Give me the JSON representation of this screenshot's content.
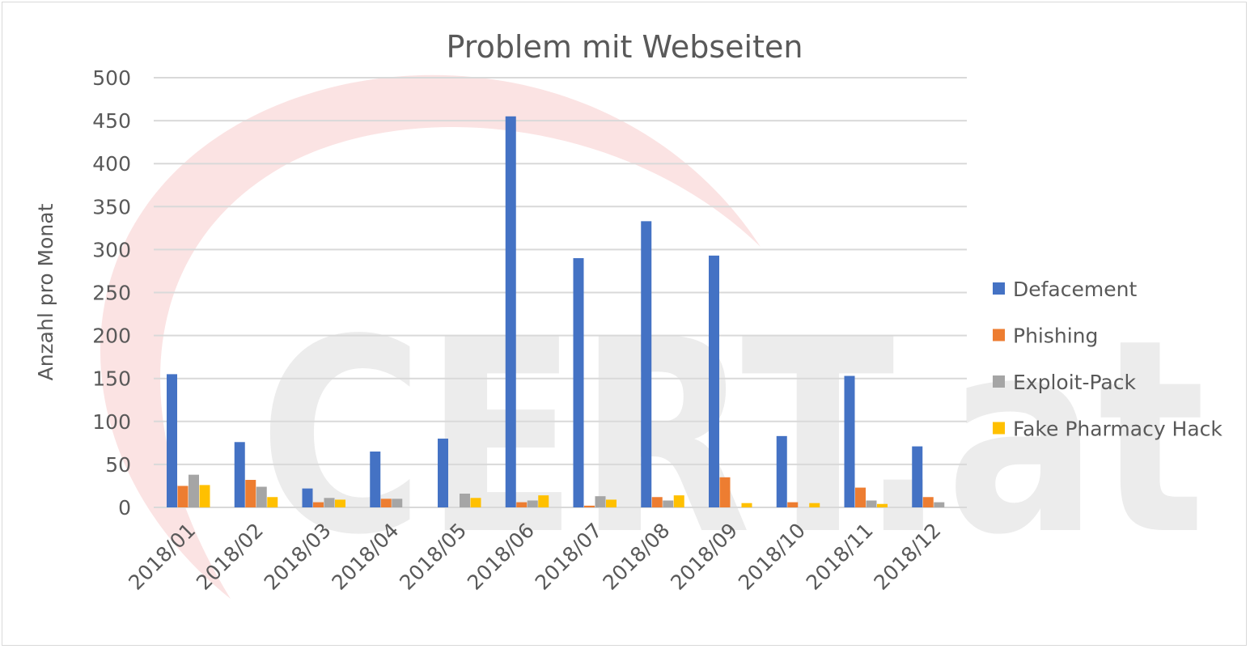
{
  "watermark": {
    "text": "CERT.at",
    "colors": {
      "swoosh": "#fbe3e3",
      "letters": "#ececec"
    }
  },
  "chart_data": {
    "type": "bar",
    "title": "Problem mit Webseiten",
    "xlabel": "",
    "ylabel": "Anzahl pro Monat",
    "ylim": [
      0,
      500
    ],
    "yticks": [
      0,
      50,
      100,
      150,
      200,
      250,
      300,
      350,
      400,
      450,
      500
    ],
    "grid": true,
    "legend_position": "right",
    "categories": [
      "2018/01",
      "2018/02",
      "2018/03",
      "2018/04",
      "2018/05",
      "2018/06",
      "2018/07",
      "2018/08",
      "2018/09",
      "2018/10",
      "2018/11",
      "2018/12"
    ],
    "series": [
      {
        "name": "Defacement",
        "color": "#4472c4",
        "values": [
          155,
          76,
          22,
          65,
          80,
          455,
          290,
          333,
          293,
          83,
          153,
          71
        ]
      },
      {
        "name": "Phishing",
        "color": "#ed7d31",
        "values": [
          25,
          32,
          6,
          10,
          0,
          6,
          2,
          12,
          35,
          6,
          23,
          12
        ]
      },
      {
        "name": "Exploit-Pack",
        "color": "#a5a5a5",
        "values": [
          38,
          24,
          11,
          10,
          16,
          8,
          13,
          8,
          0,
          0,
          8,
          6
        ]
      },
      {
        "name": "Fake Pharmacy Hack",
        "color": "#ffc000",
        "values": [
          26,
          12,
          9,
          0,
          11,
          14,
          9,
          14,
          5,
          5,
          4,
          0
        ]
      }
    ]
  }
}
